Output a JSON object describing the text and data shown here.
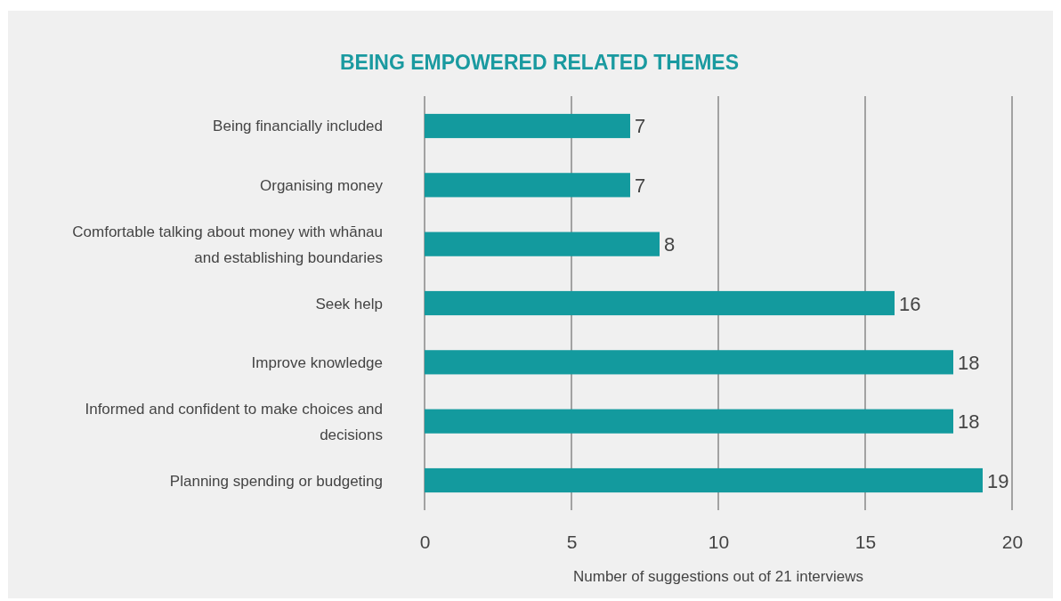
{
  "chart_data": {
    "type": "bar",
    "orientation": "horizontal",
    "title": "BEING EMPOWERED RELATED THEMES",
    "categories": [
      "Being financially included",
      "Organising money",
      "Comfortable talking about money with whānau and establishing boundaries",
      "Seek help",
      "Improve knowledge",
      "Informed and confident to make choices and decisions",
      "Planning spending or budgeting"
    ],
    "values": [
      7,
      7,
      8,
      16,
      18,
      18,
      19
    ],
    "color": "#139a9e",
    "xlim": [
      0,
      20
    ],
    "xticks": [
      0,
      5,
      10,
      15,
      20
    ],
    "grid": "x",
    "data_labels": true,
    "xlabel": "Number of suggestions out of 21 interviews"
  }
}
